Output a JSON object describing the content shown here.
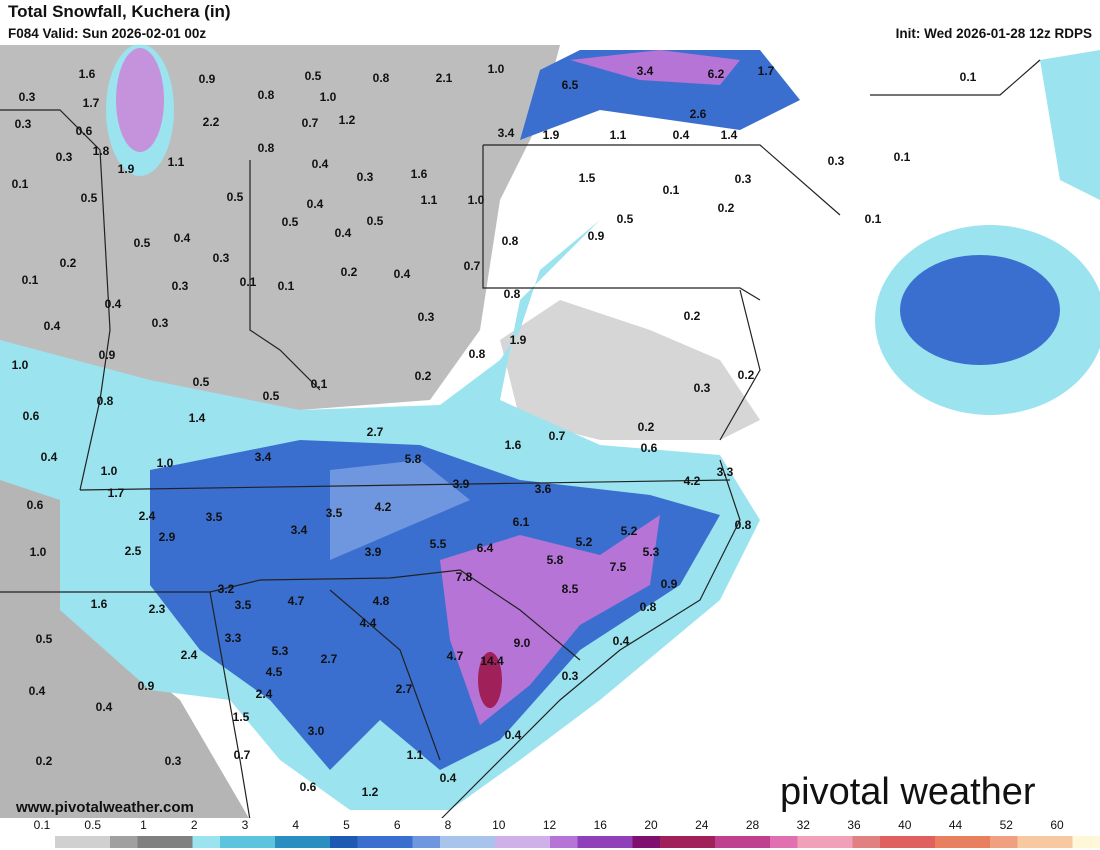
{
  "header": {
    "title": "Total Snowfall, Kuchera (in)",
    "valid": "F084 Valid: Sun 2026-02-01 00z",
    "init": "Init: Wed 2026-01-28 12z RDPS"
  },
  "map_labels": [
    "1.6",
    "0.9",
    "0.5",
    "0.8",
    "2.1",
    "1.0",
    "6.5",
    "3.4",
    "6.2",
    "1.7",
    "0.1",
    "0.3",
    "1.7",
    "0.8",
    "1.0",
    "0.3",
    "0.6",
    "2.2",
    "0.7",
    "1.2",
    "3.4",
    "1.9",
    "1.1",
    "0.4",
    "2.6",
    "1.4",
    "1.8",
    "0.3",
    "0.8",
    "1.1",
    "1.9",
    "0.4",
    "0.3",
    "1.6",
    "0.3",
    "0.1",
    "0.1",
    "0.5",
    "0.5",
    "1.1",
    "1.0",
    "1.5",
    "0.1",
    "0.3",
    "0.2",
    "0.1",
    "0.4",
    "0.5",
    "0.5",
    "0.4",
    "0.5",
    "0.4",
    "0.5",
    "0.9",
    "0.8",
    "0.2",
    "0.3",
    "0.2",
    "0.4",
    "0.7",
    "0.1",
    "0.3",
    "0.1",
    "0.1",
    "0.8",
    "0.4",
    "0.4",
    "0.3",
    "0.3",
    "0.2",
    "1.9",
    "0.9",
    "0.8",
    "1.0",
    "0.5",
    "0.1",
    "0.2",
    "0.3",
    "0.2",
    "0.5",
    "0.8",
    "0.6",
    "1.4",
    "2.7",
    "0.7",
    "0.2",
    "1.6",
    "0.6",
    "0.4",
    "3.4",
    "5.8",
    "3.3",
    "1.0",
    "1.0",
    "3.9",
    "3.6",
    "4.2",
    "1.7",
    "0.6",
    "2.4",
    "3.5",
    "3.5",
    "4.2",
    "6.1",
    "0.8",
    "5.2",
    "3.4",
    "2.9",
    "5.2",
    "5.5",
    "6.4",
    "1.0",
    "2.5",
    "3.9",
    "5.8",
    "5.3",
    "7.5",
    "7.8",
    "0.9",
    "3.2",
    "8.5",
    "1.6",
    "2.3",
    "3.5",
    "4.7",
    "4.8",
    "0.8",
    "4.4",
    "3.3",
    "0.4",
    "9.0",
    "0.5",
    "5.3",
    "2.7",
    "4.7",
    "14.4",
    "2.4",
    "4.5",
    "0.3",
    "0.9",
    "0.4",
    "2.4",
    "2.7",
    "0.4",
    "1.5",
    "3.0",
    "0.4",
    "0.7",
    "1.1",
    "0.2",
    "0.3",
    "0.4",
    "0.6",
    "1.2"
  ],
  "footer": {
    "url": "www.pivotalweather.com",
    "logo": "pivotal weather"
  },
  "colorbar": {
    "ticks": [
      "0.1",
      "0.5",
      "1",
      "2",
      "3",
      "4",
      "5",
      "6",
      "8",
      "10",
      "12",
      "16",
      "20",
      "24",
      "28",
      "32",
      "36",
      "40",
      "44",
      "52",
      "60"
    ]
  }
}
